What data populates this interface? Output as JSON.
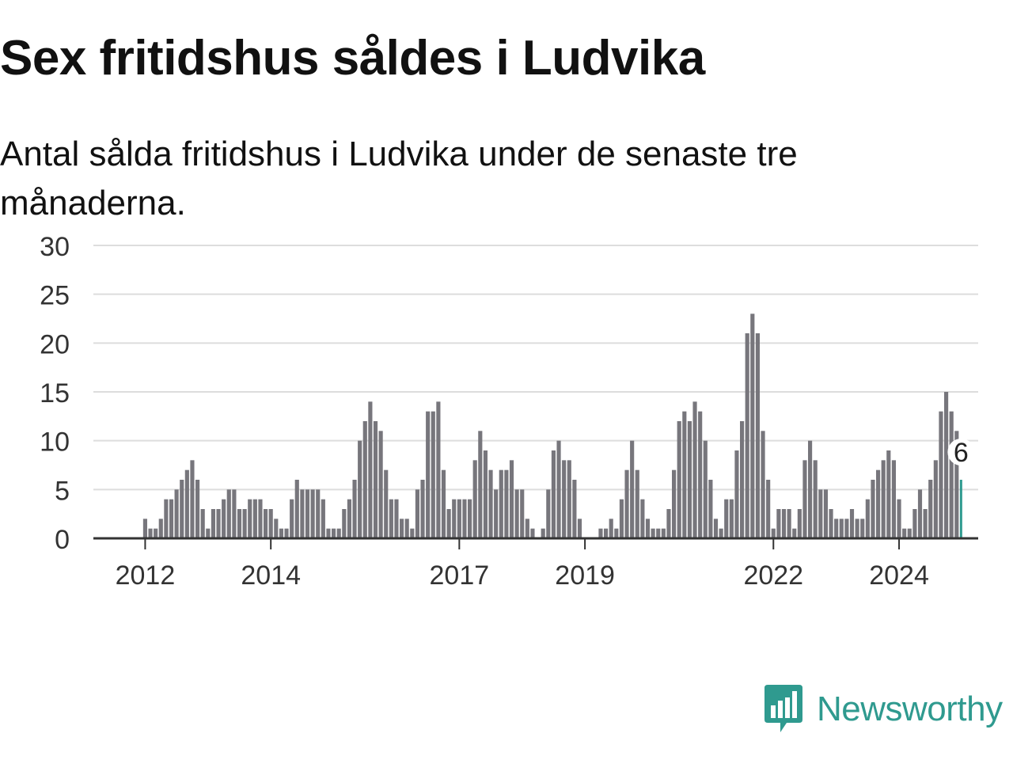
{
  "title": "Sex fritidshus såldes i Ludvika",
  "subtitle": "Antal sålda fritidshus i Ludvika under de senaste tre månaderna.",
  "brand": {
    "name": "Newsworthy",
    "color": "#2f9a8f",
    "icon": "newsworthy-logo-icon"
  },
  "chart_data": {
    "type": "bar",
    "title": "Sex fritidshus såldes i Ludvika",
    "subtitle": "Antal sålda fritidshus i Ludvika under de senaste tre månaderna.",
    "xlabel": "",
    "ylabel": "",
    "ylim": [
      0,
      30
    ],
    "yticks": [
      0,
      5,
      10,
      15,
      20,
      25,
      30
    ],
    "grid": true,
    "legend": "none",
    "start_month": "2011-04",
    "frequency": "monthly",
    "xtick_labels": [
      {
        "label": "2012",
        "month": "2012-01"
      },
      {
        "label": "2014",
        "month": "2014-01"
      },
      {
        "label": "2017",
        "month": "2017-01"
      },
      {
        "label": "2019",
        "month": "2019-01"
      },
      {
        "label": "2022",
        "month": "2022-01"
      },
      {
        "label": "2024",
        "month": "2024-01"
      }
    ],
    "values": [
      0,
      0,
      0,
      0,
      0,
      0,
      0,
      0,
      0,
      2,
      1,
      1,
      2,
      4,
      4,
      5,
      6,
      7,
      8,
      6,
      3,
      1,
      3,
      3,
      4,
      5,
      5,
      3,
      3,
      4,
      4,
      4,
      3,
      3,
      2,
      1,
      1,
      4,
      6,
      5,
      5,
      5,
      5,
      4,
      1,
      1,
      1,
      3,
      4,
      6,
      10,
      12,
      14,
      12,
      11,
      7,
      4,
      4,
      2,
      2,
      1,
      5,
      6,
      13,
      13,
      14,
      7,
      3,
      4,
      4,
      4,
      4,
      8,
      11,
      9,
      7,
      5,
      7,
      7,
      8,
      5,
      5,
      2,
      1,
      0,
      1,
      5,
      9,
      10,
      8,
      8,
      6,
      2,
      0,
      0,
      0,
      1,
      1,
      2,
      1,
      4,
      7,
      10,
      7,
      4,
      2,
      1,
      1,
      1,
      3,
      7,
      12,
      13,
      12,
      14,
      13,
      10,
      6,
      2,
      1,
      4,
      4,
      9,
      12,
      21,
      23,
      21,
      11,
      6,
      1,
      3,
      3,
      3,
      1,
      3,
      8,
      10,
      8,
      5,
      5,
      3,
      2,
      2,
      2,
      3,
      2,
      2,
      4,
      6,
      7,
      8,
      9,
      8,
      4,
      1,
      1,
      3,
      5,
      3,
      6,
      8,
      13,
      15,
      13,
      11,
      6
    ],
    "colors": {
      "bar": "#77767c",
      "highlight": "#2f9a8f",
      "grid": "#dddddd",
      "axis": "#333333"
    },
    "highlight": {
      "index": "last",
      "label": "6"
    }
  }
}
